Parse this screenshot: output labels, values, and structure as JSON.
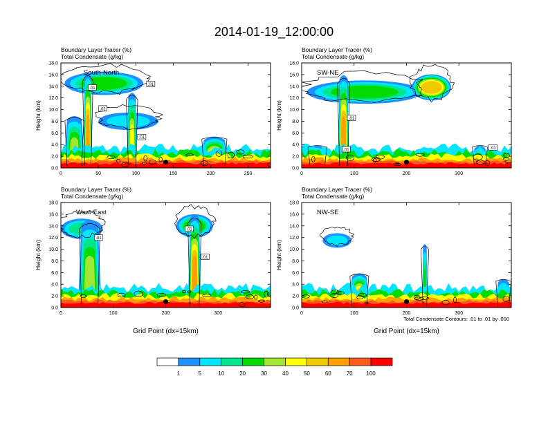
{
  "figure": {
    "title": "2014-01-19_12:00:00",
    "contour_note": "Total Condensate Contours: .01 to .01 by .000",
    "colorbar": {
      "labels": [
        "1",
        "5",
        "10",
        "20",
        "30",
        "40",
        "50",
        "60",
        "70",
        "100"
      ],
      "colors": [
        "#ffffff",
        "#1e90ff",
        "#00e6ff",
        "#00e68c",
        "#00dc00",
        "#a0e632",
        "#ffff00",
        "#f0c800",
        "#ffa000",
        "#ff5a1e",
        "#ff0000"
      ]
    }
  },
  "chart_data": [
    {
      "type": "heatmap",
      "panel": "South-North",
      "title_line1": "Boundary Layer Tracer    (%)",
      "title_line2": "Total Condensate    (g/kg)",
      "ylabel": "Height (km)",
      "xlabel": "",
      "xlim": [
        0,
        280
      ],
      "ylim": [
        0,
        18
      ],
      "x_ticks": [
        "0",
        "50",
        "100",
        "150",
        "200",
        "250"
      ],
      "x_tick_values": [
        0,
        50,
        100,
        150,
        200,
        250
      ],
      "y_ticks": [
        "0.0",
        "2.0",
        "4.0",
        "6.0",
        "8.0",
        "10.0",
        "12.0",
        "14.0",
        "16.0",
        "18.0"
      ],
      "marker": {
        "x": 140,
        "y": 1.0
      },
      "contour_labels": [
        {
          "text": ".01",
          "x": 42,
          "y": 13.8
        },
        {
          "text": ".01",
          "x": 56,
          "y": 10.2
        },
        {
          "text": ".01",
          "x": 120,
          "y": 14.4
        },
        {
          "text": ".01",
          "x": 108,
          "y": 5.3
        }
      ],
      "plumes": [
        {
          "x": 36,
          "top": 16.5,
          "w": 12,
          "level": 8
        },
        {
          "x": 18,
          "top": 9.0,
          "w": 28,
          "level": 5
        },
        {
          "x": 95,
          "top": 13.0,
          "w": 14,
          "level": 6
        },
        {
          "x": 205,
          "top": 5.5,
          "w": 40,
          "level": 7
        }
      ],
      "anvils": [
        {
          "x1": 5,
          "x2": 110,
          "y": 14.5,
          "t": 4.0,
          "level": 4
        },
        {
          "x1": 50,
          "x2": 130,
          "y": 8.0,
          "t": 3.0,
          "level": 2
        }
      ]
    },
    {
      "type": "heatmap",
      "panel": "SW-NE",
      "title_line1": "Boundary Layer Tracer    (%)",
      "title_line2": "Total Condensate    (g/kg)",
      "ylabel": "Height (km)",
      "xlabel": "",
      "xlim": [
        0,
        400
      ],
      "ylim": [
        0,
        18
      ],
      "x_ticks": [
        "0",
        "100",
        "200",
        "300"
      ],
      "x_tick_values": [
        0,
        100,
        200,
        300
      ],
      "y_ticks": [
        "0.0",
        "2.0",
        "4.0",
        "6.0",
        "8.0",
        "10.0",
        "12.0",
        "14.0",
        "16.0",
        "18.0"
      ],
      "marker": {
        "x": 200,
        "y": 1.0
      },
      "contour_labels": [
        {
          "text": ".01",
          "x": 95,
          "y": 8.6
        },
        {
          "text": ".01",
          "x": 85,
          "y": 3.2
        },
        {
          "text": ".01",
          "x": 365,
          "y": 3.5
        }
      ],
      "plumes": [
        {
          "x": 80,
          "top": 16.0,
          "w": 22,
          "level": 8
        },
        {
          "x": 30,
          "top": 4.0,
          "w": 40,
          "level": 5
        },
        {
          "x": 340,
          "top": 4.0,
          "w": 30,
          "level": 5
        }
      ],
      "anvils": [
        {
          "x1": 10,
          "x2": 230,
          "y": 13.0,
          "t": 4.0,
          "level": 4
        },
        {
          "x1": 210,
          "x2": 285,
          "y": 13.8,
          "t": 4.5,
          "level": 7
        }
      ]
    },
    {
      "type": "heatmap",
      "panel": "West-East",
      "title_line1": "Boundary Layer Tracer    (%)",
      "title_line2": "Total Condensate    (g/kg)",
      "ylabel": "Height (km)",
      "xlabel": "Grid Point (dx=15km)",
      "xlim": [
        0,
        400
      ],
      "ylim": [
        0,
        18
      ],
      "x_ticks": [
        "0",
        "100",
        "200",
        "300"
      ],
      "x_tick_values": [
        0,
        100,
        200,
        300
      ],
      "y_ticks": [
        "0.0",
        "2.0",
        "4.0",
        "6.0",
        "8.0",
        "10.0",
        "12.0",
        "14.0",
        "16.0",
        "18.0"
      ],
      "marker": {
        "x": 200,
        "y": 1.0
      },
      "contour_labels": [
        {
          "text": ".01",
          "x": 72,
          "y": 12.0
        },
        {
          "text": ".01",
          "x": 245,
          "y": 13.5
        },
        {
          "text": ".01",
          "x": 275,
          "y": 8.7
        }
      ],
      "plumes": [
        {
          "x": 55,
          "top": 15.0,
          "w": 45,
          "level": 5
        },
        {
          "x": 255,
          "top": 16.0,
          "w": 25,
          "level": 8
        }
      ],
      "anvils": [
        {
          "x1": 0,
          "x2": 80,
          "y": 13.5,
          "t": 3.5,
          "level": 3
        },
        {
          "x1": 220,
          "x2": 290,
          "y": 14.0,
          "t": 4.0,
          "level": 4
        }
      ]
    },
    {
      "type": "heatmap",
      "panel": "NW-SE",
      "title_line1": "Boundary Layer Tracer    (%)",
      "title_line2": "Total Condensate    (g/kg)",
      "ylabel": "Height (km)",
      "xlabel": "Grid Point (dx=15km)",
      "xlim": [
        0,
        400
      ],
      "ylim": [
        0,
        18
      ],
      "x_ticks": [
        "0",
        "100",
        "200",
        "300"
      ],
      "x_tick_values": [
        0,
        100,
        200,
        300
      ],
      "y_ticks": [
        "0.0",
        "2.0",
        "4.0",
        "6.0",
        "8.0",
        "10.0",
        "12.0",
        "14.0",
        "16.0",
        "18.0"
      ],
      "marker": {
        "x": 200,
        "y": 1.0
      },
      "contour_labels": [],
      "plumes": [
        {
          "x": 110,
          "top": 6.0,
          "w": 40,
          "level": 7
        },
        {
          "x": 235,
          "top": 11.0,
          "w": 10,
          "level": 4
        },
        {
          "x": 385,
          "top": 5.0,
          "w": 30,
          "level": 4
        }
      ],
      "anvils": [
        {
          "x1": 40,
          "x2": 95,
          "y": 11.5,
          "t": 2.5,
          "level": 2
        }
      ]
    }
  ]
}
